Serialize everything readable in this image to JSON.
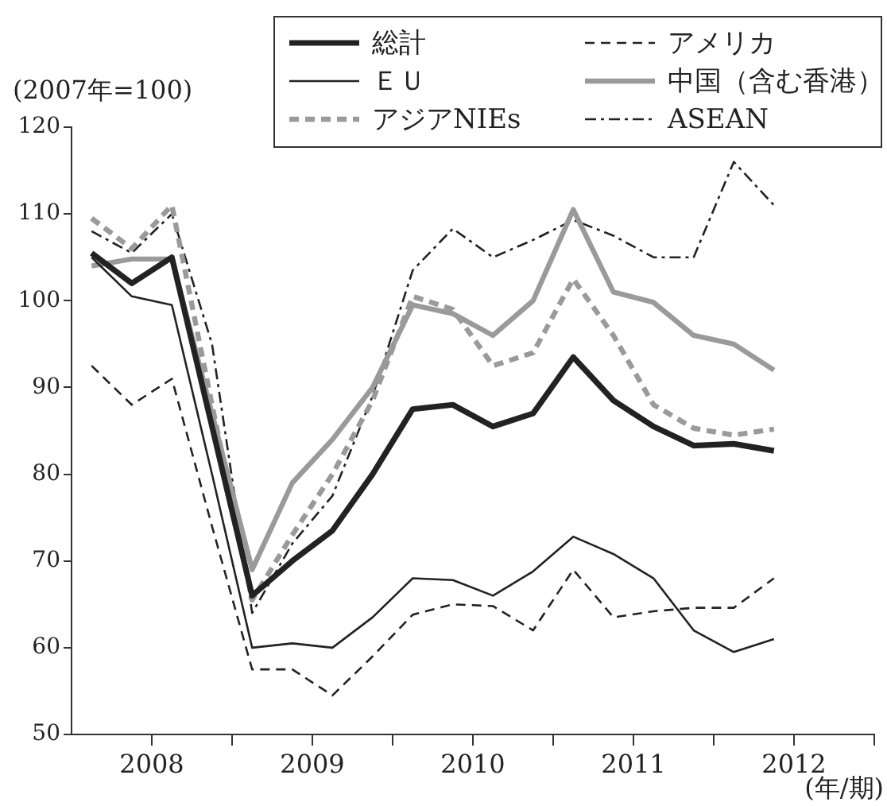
{
  "chart_data": {
    "type": "line",
    "ylabel": "(2007年=100)",
    "xlabel": "(年/期)",
    "x": [
      2008.125,
      2008.375,
      2008.625,
      2008.875,
      2009.125,
      2009.375,
      2009.625,
      2009.875,
      2010.125,
      2010.375,
      2010.625,
      2010.875,
      2011.125,
      2011.375,
      2011.625,
      2011.875,
      2012.125,
      2012.375
    ],
    "xlim": [
      2008,
      2013
    ],
    "xticks": [
      {
        "value": 2008.5,
        "label": "2008"
      },
      {
        "value": 2009,
        "label": null
      },
      {
        "value": 2009.5,
        "label": "2009"
      },
      {
        "value": 2010,
        "label": null
      },
      {
        "value": 2010.5,
        "label": "2010"
      },
      {
        "value": 2011,
        "label": null
      },
      {
        "value": 2011.5,
        "label": "2011"
      },
      {
        "value": 2012,
        "label": null
      },
      {
        "value": 2012.5,
        "label": "2012"
      },
      {
        "value": 2013,
        "label": null
      }
    ],
    "ylim": [
      50,
      120
    ],
    "yticks": [
      50,
      60,
      70,
      80,
      90,
      100,
      110,
      120
    ],
    "grid": false,
    "legend": "top right",
    "marker": "none",
    "series": [
      {
        "name": "総計",
        "color": "#222222",
        "line_style": "solid",
        "values": [
          105.5,
          102,
          105,
          85.5,
          66,
          70,
          73.5,
          80,
          87.5,
          88,
          85.5,
          87,
          93.5,
          88.5,
          85.5,
          83.3,
          83.5,
          82.7
        ]
      },
      {
        "name": "アメリカ",
        "color": "#222222",
        "line_style": "dashed",
        "values": [
          92.5,
          88,
          91,
          74,
          57.5,
          57.5,
          54.5,
          59,
          63.8,
          65,
          64.8,
          62,
          69,
          63.5,
          64.2,
          64.6,
          64.6,
          68
        ]
      },
      {
        "name": "ＥＵ",
        "color": "#222222",
        "line_style": "solid",
        "values": [
          105,
          100.5,
          99.5,
          80,
          60,
          60.5,
          60,
          63.5,
          68,
          67.8,
          66,
          68.8,
          72.8,
          70.8,
          68,
          62,
          59.5,
          61
        ]
      },
      {
        "name": "中国（含む香港）",
        "color": "#9a9a9a",
        "line_style": "solid",
        "values": [
          104,
          104.8,
          104.8,
          87,
          69,
          79,
          84,
          90,
          99.5,
          98.5,
          96,
          100,
          110.5,
          101,
          99.8,
          96,
          95,
          92
        ]
      },
      {
        "name": "アジアNIEs",
        "color": "#9a9a9a",
        "line_style": "dashed",
        "values": [
          109.5,
          106,
          111,
          88,
          65.5,
          73,
          80,
          88.5,
          100.5,
          99,
          92.5,
          94,
          102.5,
          96,
          88,
          85.3,
          84.5,
          85.2
        ]
      },
      {
        "name": "ASEAN",
        "color": "#222222",
        "line_style": "dashdot",
        "values": [
          108,
          105.5,
          110,
          95,
          64,
          72,
          77.5,
          89,
          103.5,
          108.3,
          105,
          107,
          109.3,
          107.5,
          105,
          105,
          116,
          111
        ]
      }
    ]
  }
}
